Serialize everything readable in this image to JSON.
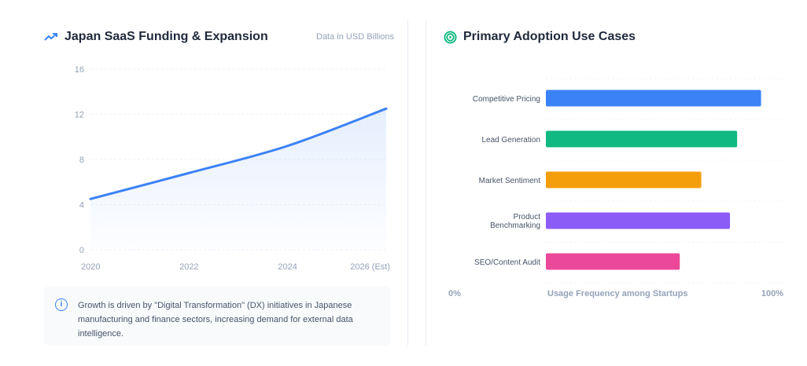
{
  "left_panel": {
    "title": "Japan SaaS Funding & Expansion",
    "title_icon": "trending-up-icon",
    "subtitle": "Data in USD Billions",
    "note_icon": "info-icon",
    "note": "Growth is driven by \"Digital Transformation\" (DX) initiatives in Japanese manufacturing and finance sectors, increasing demand for external data intelligence."
  },
  "right_panel": {
    "title": "Primary Adoption Use Cases",
    "title_icon": "target-icon"
  },
  "chart_data": [
    {
      "type": "area",
      "x": [
        "2020",
        "2022",
        "2024",
        "2026 (Est)"
      ],
      "values": [
        4.5,
        6.8,
        9.2,
        12.5
      ],
      "y_ticks": [
        "0",
        "4",
        "8",
        "12",
        "16"
      ],
      "ylim": [
        0,
        16
      ],
      "grid": true,
      "color": "#3b82f6"
    },
    {
      "type": "bar",
      "orientation": "horizontal",
      "categories": [
        "Competitive Pricing",
        "Lead Generation",
        "Market Sentiment",
        "Product Benchmarking",
        "SEO/Content Audit"
      ],
      "values": [
        90,
        80,
        65,
        77,
        56
      ],
      "colors": [
        "#3b82f6",
        "#10b981",
        "#f59e0b",
        "#8b5cf6",
        "#ec4899"
      ],
      "xlabel": "Usage Frequency among Startups",
      "x_min_label": "0%",
      "x_max_label": "100%",
      "xlim": [
        0,
        100
      ],
      "grid": true
    }
  ]
}
